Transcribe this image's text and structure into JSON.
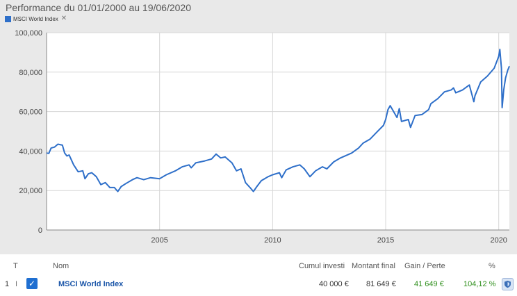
{
  "title": "Performance du 01/01/2000 au 19/06/2020",
  "legend": {
    "label": "MSCI World Index",
    "close": "✕",
    "color": "#2e6fc9"
  },
  "chart_data": {
    "type": "line",
    "title": "Performance du 01/01/2000 au 19/06/2020",
    "xlabel": "",
    "ylabel": "",
    "xlim": [
      2000.0,
      2020.47
    ],
    "ylim": [
      0,
      100000
    ],
    "y_ticks": [
      0,
      20000,
      40000,
      60000,
      80000,
      100000
    ],
    "y_tick_labels": [
      "0",
      "20,000",
      "40,000",
      "60,000",
      "80,000",
      "100,000"
    ],
    "x_ticks": [
      2005,
      2010,
      2015,
      2020
    ],
    "x_tick_labels": [
      "2005",
      "2010",
      "2015",
      "2020"
    ],
    "grid": true,
    "series": [
      {
        "name": "MSCI World Index",
        "color": "#2e6fc9",
        "x": [
          2000.0,
          2000.1,
          2000.2,
          2000.35,
          2000.5,
          2000.7,
          2000.8,
          2000.9,
          2001.0,
          2001.2,
          2001.4,
          2001.6,
          2001.7,
          2001.85,
          2002.0,
          2002.2,
          2002.4,
          2002.6,
          2002.8,
          2003.0,
          2003.15,
          2003.3,
          2003.5,
          2003.8,
          2004.0,
          2004.3,
          2004.6,
          2005.0,
          2005.3,
          2005.7,
          2006.0,
          2006.3,
          2006.4,
          2006.6,
          2007.0,
          2007.3,
          2007.5,
          2007.7,
          2007.9,
          2008.2,
          2008.4,
          2008.6,
          2008.8,
          2009.0,
          2009.15,
          2009.3,
          2009.5,
          2009.8,
          2010.0,
          2010.3,
          2010.4,
          2010.6,
          2010.9,
          2011.2,
          2011.4,
          2011.65,
          2011.9,
          2012.2,
          2012.4,
          2012.7,
          2013.0,
          2013.3,
          2013.5,
          2013.8,
          2014.0,
          2014.3,
          2014.6,
          2014.9,
          2015.0,
          2015.1,
          2015.2,
          2015.3,
          2015.5,
          2015.6,
          2015.7,
          2016.0,
          2016.1,
          2016.3,
          2016.6,
          2016.9,
          2017.0,
          2017.3,
          2017.6,
          2017.9,
          2018.0,
          2018.1,
          2018.4,
          2018.7,
          2018.9,
          2018.95,
          2019.2,
          2019.5,
          2019.8,
          2020.0,
          2020.05,
          2020.12,
          2020.15,
          2020.22,
          2020.3,
          2020.4,
          2020.47
        ],
        "values": [
          39000,
          38800,
          41500,
          42000,
          43500,
          43000,
          39000,
          37500,
          38000,
          33000,
          29500,
          30000,
          26000,
          28500,
          29000,
          27000,
          23000,
          24000,
          21500,
          21500,
          19500,
          22000,
          23500,
          25500,
          26500,
          25500,
          26500,
          26000,
          28000,
          30000,
          32000,
          33000,
          31500,
          34000,
          35000,
          36000,
          38500,
          36500,
          37000,
          34000,
          30000,
          31000,
          24000,
          21500,
          19500,
          22000,
          25000,
          27000,
          28000,
          29000,
          26500,
          30500,
          32000,
          33000,
          31000,
          27000,
          30000,
          32000,
          31000,
          34500,
          36500,
          38000,
          39000,
          41500,
          44000,
          46000,
          49500,
          53000,
          56000,
          61000,
          63000,
          61000,
          57000,
          61500,
          55000,
          56000,
          52000,
          58000,
          58500,
          61000,
          64000,
          66500,
          70000,
          71000,
          72000,
          69500,
          71000,
          73500,
          65000,
          68000,
          75000,
          78000,
          82000,
          88000,
          91500,
          82000,
          62000,
          71000,
          77000,
          81000,
          83000
        ]
      }
    ]
  },
  "table": {
    "headers": {
      "t": "T",
      "nom": "Nom",
      "cumul": "Cumul investi",
      "montant": "Montant final",
      "gain": "Gain / Perte",
      "pct": "%"
    },
    "rows": [
      {
        "index": "1",
        "type": "I",
        "checked": true,
        "nom": "MSCI World Index",
        "cumul": "40 000 €",
        "montant": "81 649 €",
        "gain": "41 649 €",
        "pct": "104,12 %"
      }
    ]
  },
  "colors": {
    "gain": "#2f8f1c",
    "link": "#1a55a8",
    "check": "#1f6fd1",
    "line": "#2e6fc9"
  }
}
